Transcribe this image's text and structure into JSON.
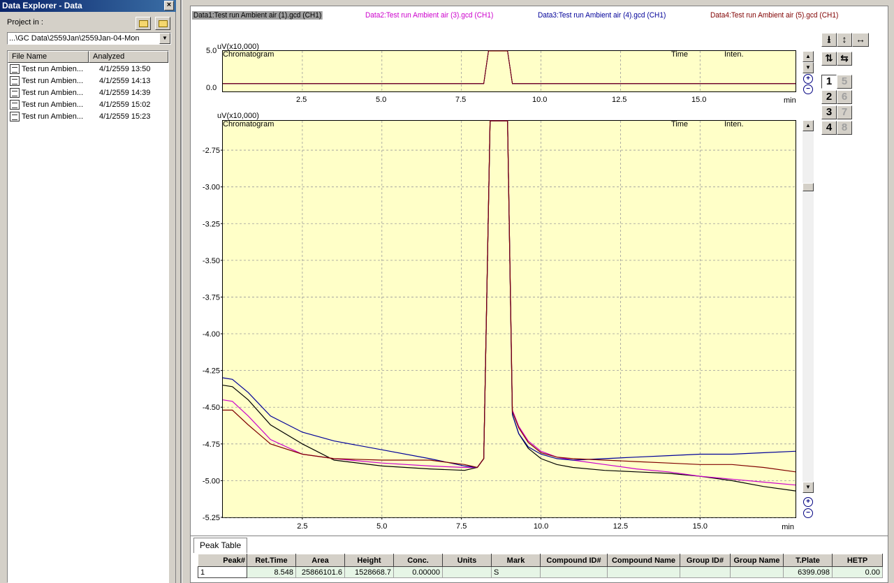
{
  "explorer": {
    "title": "Data Explorer - Data",
    "close": "×",
    "project_label": "Project in :",
    "path": "...\\GC Data\\2559Jan\\2559Jan-04-Mon",
    "combo_arrow": "▼",
    "columns": [
      "File Name",
      "Analyzed"
    ],
    "files": [
      {
        "name": "Test run Ambien...",
        "analyzed": "4/1/2559 13:50"
      },
      {
        "name": "Test run Ambien...",
        "analyzed": "4/1/2559 14:13"
      },
      {
        "name": "Test run Ambien...",
        "analyzed": "4/1/2559 14:39"
      },
      {
        "name": "Test run Ambien...",
        "analyzed": "4/1/2559 15:02"
      },
      {
        "name": "Test run Ambien...",
        "analyzed": "4/1/2559 15:23"
      }
    ]
  },
  "legend": [
    {
      "label": "Data1:Test run Ambient air (1).gcd (CH1)",
      "color": "#000000"
    },
    {
      "label": "Data2:Test run Ambient air (3).gcd (CH1)",
      "color": "#cc00cc"
    },
    {
      "label": "Data3:Test run Ambient air (4).gcd (CH1)",
      "color": "#000099"
    },
    {
      "label": "Data4:Test run Ambient air (5).gcd (CH1)",
      "color": "#800000"
    }
  ],
  "overview_plot": {
    "unit": "uV(x10,000)",
    "chrom_label": "Chromatogram",
    "time_label": "Time",
    "inten_label": "Inten.",
    "y_ticks": [
      "5.0",
      "0.0"
    ],
    "x_ticks": [
      "2.5",
      "5.0",
      "7.5",
      "10.0",
      "12.5",
      "15.0"
    ],
    "x_unit": "min"
  },
  "main_plot": {
    "unit": "uV(x10,000)",
    "chrom_label": "Chromatogram",
    "time_label": "Time",
    "inten_label": "Inten.",
    "y_ticks": [
      "-2.75",
      "-3.00",
      "-3.25",
      "-3.50",
      "-3.75",
      "-4.00",
      "-4.25",
      "-4.50",
      "-4.75",
      "-5.00",
      "-5.25"
    ],
    "x_ticks": [
      "2.5",
      "5.0",
      "7.5",
      "10.0",
      "12.5",
      "15.0"
    ],
    "x_unit": "min"
  },
  "chart_data": {
    "type": "line",
    "title": "Chromatogram",
    "xlabel": "min",
    "ylabel": "uV(x10,000)",
    "xlim": [
      0,
      18
    ],
    "ylim": [
      -5.25,
      -2.55
    ],
    "grid": true,
    "series": [
      {
        "name": "Data1:Test run Ambient air (1).gcd (CH1)",
        "color": "#000000",
        "x": [
          0,
          0.3,
          0.8,
          1.5,
          2.5,
          3.5,
          5,
          6.5,
          7.6,
          8.0,
          8.2,
          8.4,
          8.6,
          8.8,
          8.95,
          9.1,
          9.3,
          9.6,
          10,
          10.5,
          11,
          12,
          13,
          14,
          15,
          16,
          17,
          18
        ],
        "y": [
          -4.35,
          -4.36,
          -4.45,
          -4.62,
          -4.75,
          -4.86,
          -4.9,
          -4.92,
          -4.93,
          -4.91,
          -4.85,
          -2.55,
          -2.55,
          -2.55,
          -2.55,
          -4.55,
          -4.68,
          -4.78,
          -4.85,
          -4.89,
          -4.91,
          -4.93,
          -4.94,
          -4.95,
          -4.97,
          -5.0,
          -5.04,
          -5.07
        ]
      },
      {
        "name": "Data2:Test run Ambient air (3).gcd (CH1)",
        "color": "#cc00cc",
        "x": [
          0,
          0.3,
          0.8,
          1.5,
          2.5,
          3.5,
          5,
          6.5,
          7.6,
          8.0,
          8.2,
          8.4,
          8.6,
          8.8,
          8.95,
          9.1,
          9.3,
          9.6,
          10,
          10.5,
          11,
          12,
          13,
          14,
          15,
          16,
          17,
          18
        ],
        "y": [
          -4.45,
          -4.46,
          -4.56,
          -4.72,
          -4.82,
          -4.85,
          -4.88,
          -4.9,
          -4.91,
          -4.91,
          -4.85,
          -2.55,
          -2.55,
          -2.55,
          -2.55,
          -4.52,
          -4.63,
          -4.73,
          -4.8,
          -4.84,
          -4.86,
          -4.89,
          -4.92,
          -4.94,
          -4.97,
          -4.99,
          -5.01,
          -5.03
        ]
      },
      {
        "name": "Data3:Test run Ambient air (4).gcd (CH1)",
        "color": "#000099",
        "x": [
          0,
          0.3,
          0.8,
          1.5,
          2.5,
          3.5,
          5,
          6.5,
          7.6,
          8.0,
          8.2,
          8.4,
          8.6,
          8.8,
          8.95,
          9.1,
          9.3,
          9.6,
          10,
          10.5,
          11,
          12,
          13,
          14,
          15,
          16,
          17,
          18
        ],
        "y": [
          -4.3,
          -4.31,
          -4.4,
          -4.56,
          -4.67,
          -4.73,
          -4.79,
          -4.85,
          -4.9,
          -4.91,
          -4.85,
          -2.55,
          -2.55,
          -2.55,
          -2.55,
          -4.55,
          -4.68,
          -4.77,
          -4.82,
          -4.85,
          -4.86,
          -4.85,
          -4.84,
          -4.83,
          -4.82,
          -4.82,
          -4.81,
          -4.8
        ]
      },
      {
        "name": "Data4:Test run Ambient air (5).gcd (CH1)",
        "color": "#800000",
        "x": [
          0,
          0.3,
          0.8,
          1.5,
          2.5,
          3.5,
          5,
          6.5,
          7.6,
          8.0,
          8.2,
          8.4,
          8.6,
          8.8,
          8.95,
          9.1,
          9.3,
          9.6,
          10,
          10.5,
          11,
          12,
          13,
          14,
          15,
          16,
          17,
          18
        ],
        "y": [
          -4.52,
          -4.52,
          -4.62,
          -4.75,
          -4.82,
          -4.85,
          -4.86,
          -4.86,
          -4.89,
          -4.91,
          -4.85,
          -2.55,
          -2.55,
          -2.55,
          -2.55,
          -4.53,
          -4.64,
          -4.74,
          -4.81,
          -4.84,
          -4.85,
          -4.86,
          -4.87,
          -4.88,
          -4.89,
          -4.89,
          -4.91,
          -4.94
        ]
      }
    ]
  },
  "controls": {
    "scroll_up": "▲",
    "scroll_down": "▼",
    "zoom_in": "+",
    "zoom_out": "−",
    "tools": [
      "⭳",
      "↕",
      "↔",
      "⇅",
      "⇆"
    ],
    "numbers": [
      "1",
      "5",
      "2",
      "6",
      "3",
      "7",
      "4",
      "8"
    ]
  },
  "peak_table": {
    "tab": "Peak Table",
    "columns": [
      "Peak#",
      "Ret.Time",
      "Area",
      "Height",
      "Conc.",
      "Units",
      "Mark",
      "Compound ID#",
      "Compound Name",
      "Group ID#",
      "Group Name",
      "T.Plate",
      "HETP"
    ],
    "rows": [
      [
        "1",
        "8.548",
        "25866101.6",
        "1528668.7",
        "0.00000",
        "",
        "S",
        "",
        "",
        "",
        "",
        "6399.098",
        "0.00"
      ]
    ]
  }
}
